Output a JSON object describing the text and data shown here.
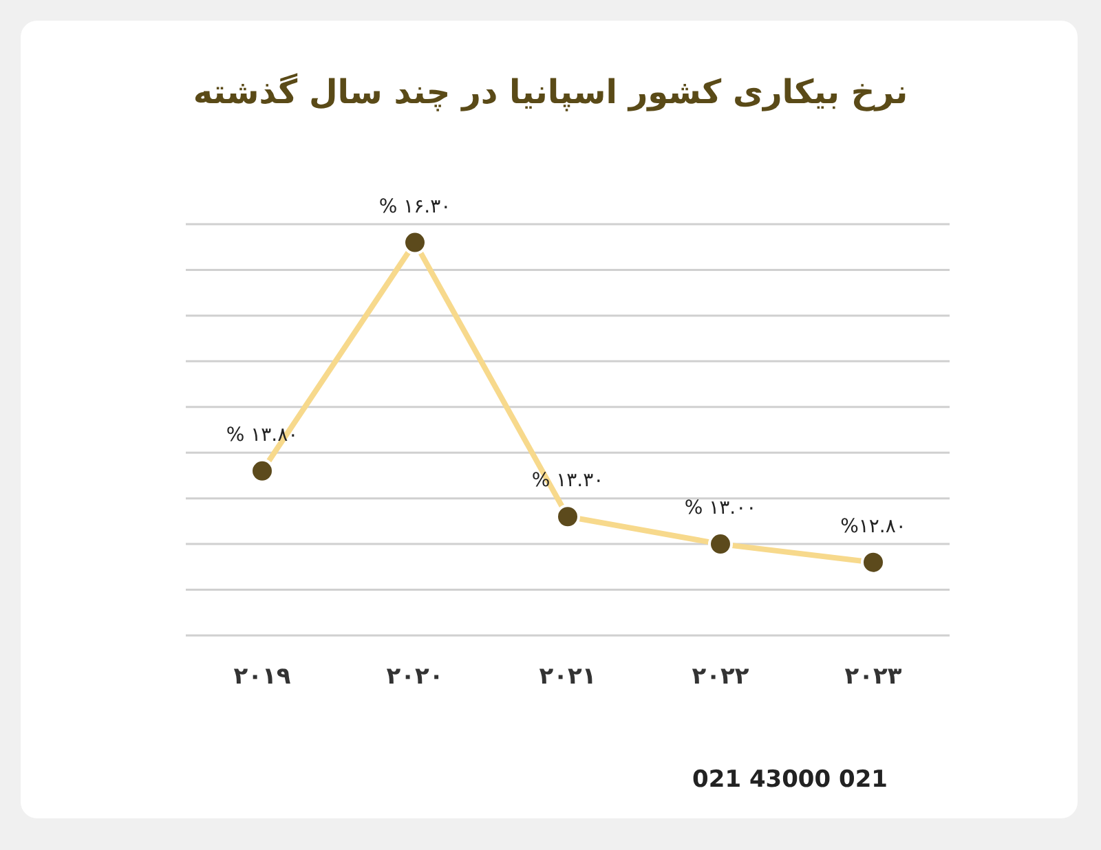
{
  "chart_data": {
    "type": "line",
    "title": "نرخ بیکاری کشور اسپانیا در چند سال گذشته",
    "categories": [
      "۲۰۱۹",
      "۲۰۲۰",
      "۲۰۲۱",
      "۲۰۲۲",
      "۲۰۲۳"
    ],
    "series": [
      {
        "color": "#f7d98c",
        "values": [
          13.8,
          16.3,
          13.3,
          13.0,
          12.8
        ],
        "value_labels": [
          "% ۱۳.۸۰",
          "% ۱۶.۳۰",
          "% ۱۳.۳۰",
          "% ۱۳.۰۰",
          "%۱۲.۸۰"
        ]
      }
    ],
    "ylim": [
      12,
      16.5
    ],
    "yticks": [
      {
        "value": 12,
        "label": null
      },
      {
        "value": 12.5,
        "label": null
      },
      {
        "value": 13,
        "label": null
      },
      {
        "value": 13.5,
        "label": null
      },
      {
        "value": 14,
        "label": null
      },
      {
        "value": 14.5,
        "label": null
      },
      {
        "value": 15,
        "label": null
      },
      {
        "value": 15.5,
        "label": null
      },
      {
        "value": 16,
        "label": null
      },
      {
        "value": 16.5,
        "label": null
      }
    ],
    "grid": "y",
    "marker": "circle",
    "line_style": "solid",
    "tick_labels": "x",
    "annotations": [
      "021 43000 021"
    ]
  }
}
